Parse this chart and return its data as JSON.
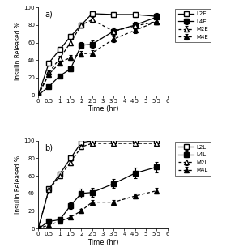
{
  "panel_a": {
    "label": "a)",
    "x": [
      0,
      0.5,
      1,
      1.5,
      2,
      2.5,
      3.5,
      4.5,
      5.5
    ],
    "series": {
      "L2E": {
        "y": [
          0,
          37,
          52,
          67,
          80,
          93,
          92,
          92,
          90
        ],
        "yerr": [
          0,
          2,
          3,
          3,
          3,
          3,
          3,
          3,
          4
        ],
        "style": "solid",
        "marker": "s",
        "fillstyle": "none",
        "label": "L2E"
      },
      "L4E": {
        "y": [
          0,
          10,
          22,
          30,
          57,
          58,
          73,
          80,
          89
        ],
        "yerr": [
          0,
          1,
          2,
          3,
          4,
          4,
          4,
          4,
          4
        ],
        "style": "solid",
        "marker": "s",
        "fillstyle": "full",
        "label": "L4E"
      },
      "M2E": {
        "y": [
          0,
          26,
          42,
          60,
          80,
          86,
          73,
          79,
          84
        ],
        "yerr": [
          0,
          2,
          3,
          3,
          3,
          3,
          3,
          3,
          3
        ],
        "style": "dotted",
        "marker": "^",
        "fillstyle": "none",
        "label": "M2E"
      },
      "M4E": {
        "y": [
          0,
          24,
          37,
          43,
          47,
          48,
          64,
          74,
          84
        ],
        "yerr": [
          0,
          2,
          2,
          3,
          3,
          3,
          3,
          3,
          3
        ],
        "style": "dotted",
        "marker": "^",
        "fillstyle": "full",
        "label": "M4E"
      }
    },
    "ylim": [
      0,
      100
    ],
    "xlim": [
      0,
      6
    ],
    "ylabel": "Insulin Released %",
    "xlabel": "Time (hr)",
    "xticks": [
      0,
      0.5,
      1,
      1.5,
      2,
      2.5,
      3,
      3.5,
      4,
      4.5,
      5,
      5.5,
      6
    ]
  },
  "panel_b": {
    "label": "b)",
    "x": [
      0,
      0.5,
      1,
      1.5,
      2,
      2.5,
      3.5,
      4.5,
      5.5
    ],
    "series": {
      "L2L": {
        "y": [
          0,
          45,
          62,
          80,
          98,
          100,
          100,
          100,
          100
        ],
        "yerr": [
          0,
          2,
          3,
          3,
          2,
          2,
          2,
          2,
          2
        ],
        "style": "solid",
        "marker": "s",
        "fillstyle": "none",
        "label": "L2L"
      },
      "L4L": {
        "y": [
          0,
          8,
          10,
          26,
          40,
          41,
          51,
          63,
          70
        ],
        "yerr": [
          0,
          1,
          2,
          4,
          5,
          5,
          5,
          6,
          6
        ],
        "style": "solid",
        "marker": "s",
        "fillstyle": "full",
        "label": "L4L"
      },
      "M2L": {
        "y": [
          0,
          44,
          60,
          75,
          93,
          97,
          97,
          97,
          97
        ],
        "yerr": [
          0,
          2,
          3,
          3,
          2,
          2,
          2,
          2,
          2
        ],
        "style": "dotted",
        "marker": "^",
        "fillstyle": "none",
        "label": "M2L"
      },
      "M4L": {
        "y": [
          0,
          4,
          8,
          13,
          20,
          30,
          30,
          37,
          43
        ],
        "yerr": [
          0,
          1,
          1,
          2,
          2,
          2,
          2,
          3,
          3
        ],
        "style": "dotted",
        "marker": "^",
        "fillstyle": "full",
        "label": "M4L"
      }
    },
    "ylim": [
      0,
      100
    ],
    "xlim": [
      0,
      6
    ],
    "ylabel": "Insulin Released %",
    "xlabel": "Time (hr)",
    "xticks": [
      0,
      0.5,
      1,
      1.5,
      2,
      2.5,
      3,
      3.5,
      4,
      4.5,
      5,
      5.5,
      6
    ]
  },
  "figsize": [
    2.95,
    3.1
  ],
  "dpi": 100
}
